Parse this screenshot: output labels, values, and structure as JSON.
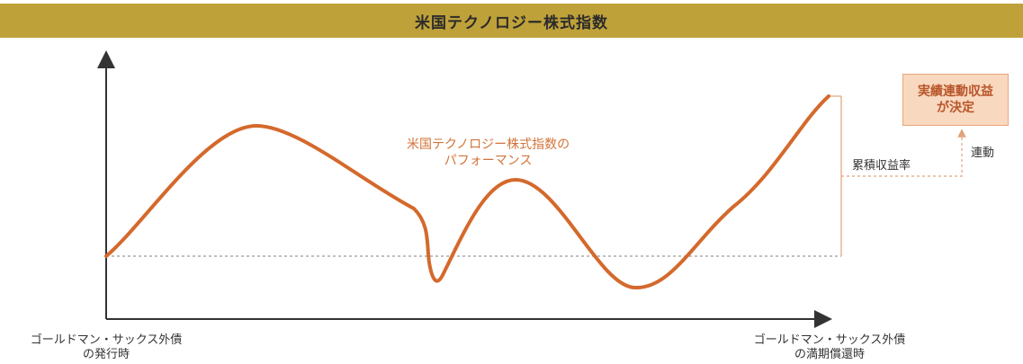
{
  "title": "米国テクノロジー株式指数",
  "curve_label": {
    "line1": "米国テクノロジー株式指数の",
    "line2": "パフォーマンス"
  },
  "cumulative_label": "累積収益率",
  "link_label": "連動",
  "result_box": {
    "line1": "実績連動収益",
    "line2": "が決定"
  },
  "x_start": {
    "line1": "ゴールドマン・サックス外債",
    "line2": "の発行時"
  },
  "x_end": {
    "line1": "ゴールドマン・サックス外債",
    "line2": "の満期償還時"
  },
  "colors": {
    "title_bar": "#bfa13a",
    "curve": "#d4692c",
    "dashed": "#e2a27a",
    "box_fill": "#f8d8bf"
  }
}
